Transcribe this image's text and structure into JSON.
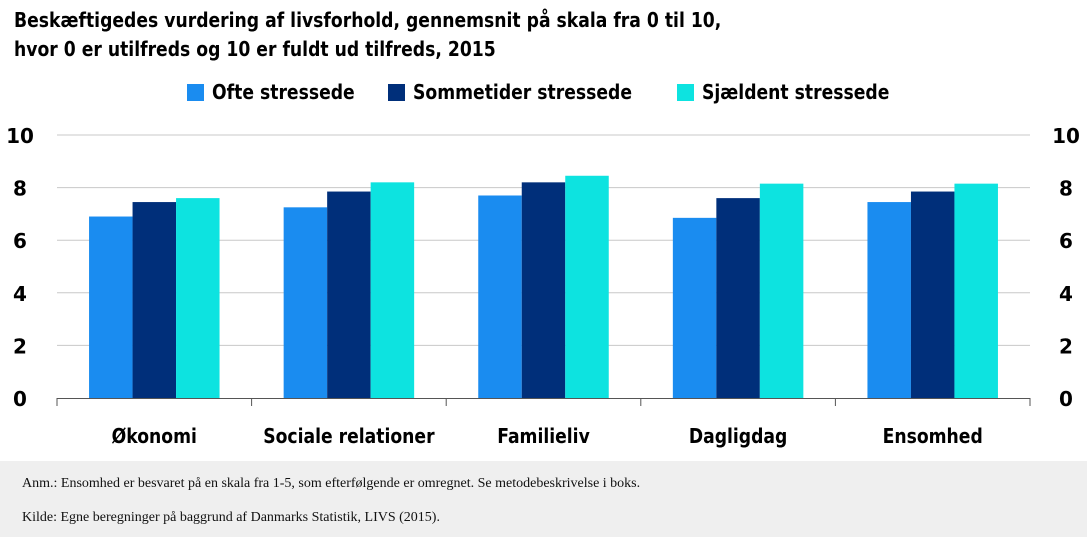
{
  "title_lines": [
    "Beskæftigedes vurdering af livsforhold, gennemsnit på skala fra 0 til 10,",
    "hvor 0 er utilfreds og 10 er fuldt ud tilfreds, 2015"
  ],
  "notes": {
    "anm": "Anm.: Ensomhed er besvaret på en skala fra 1-5, som efterfølgende er omregnet. Se metodebeskrivelse i boks.",
    "kilde": "Kilde: Egne beregninger på baggrund af Danmarks Statistik, LIVS (2015)."
  },
  "chart_data": {
    "type": "bar",
    "title": "Beskæftigedes vurdering af livsforhold, gennemsnit på skala fra 0 til 10, hvor 0 er utilfreds og 10 er fuldt ud tilfreds, 2015",
    "xlabel": "",
    "ylabel": "",
    "categories": [
      "Økonomi",
      "Sociale relationer",
      "Familieliv",
      "Dagligdag",
      "Ensomhed"
    ],
    "series": [
      {
        "name": "Ofte stressede",
        "color": "#1a8cf0",
        "values": [
          6.9,
          7.25,
          7.7,
          6.85,
          7.45
        ]
      },
      {
        "name": "Sommetider stressede",
        "color": "#002f7a",
        "values": [
          7.45,
          7.85,
          8.2,
          7.6,
          7.85
        ]
      },
      {
        "name": "Sjældent stressede",
        "color": "#0de3e0",
        "values": [
          7.6,
          8.2,
          8.45,
          8.15,
          8.15
        ]
      }
    ],
    "ylim": [
      0,
      10
    ],
    "yticks": [
      "0",
      "2",
      "4",
      "6",
      "8",
      "10"
    ],
    "grid": true,
    "y_axis_both_sides": true,
    "legend_position": "top-center"
  }
}
